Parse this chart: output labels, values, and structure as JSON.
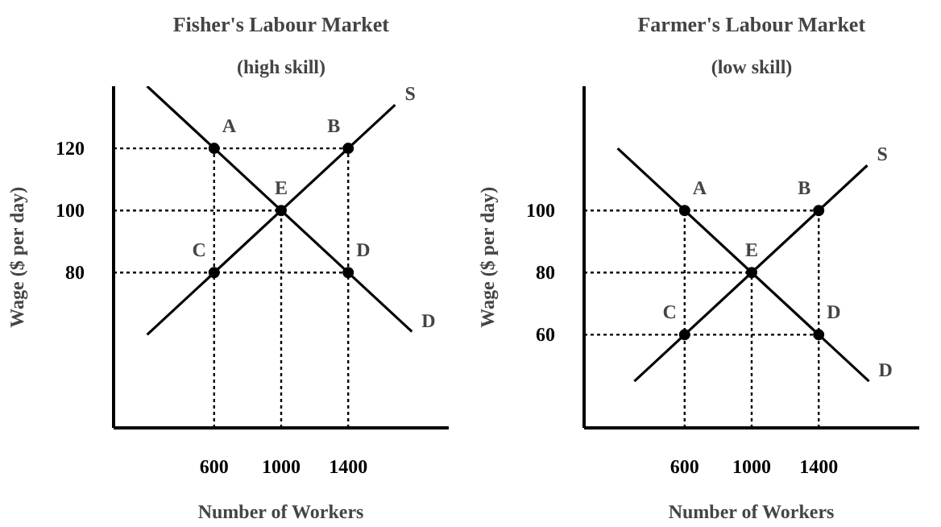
{
  "chart_data": [
    {
      "type": "line",
      "title": "Fisher's Labour Market",
      "subtitle": "(high skill)",
      "xlabel": "Number of Workers",
      "ylabel": "Wage ($ per day)",
      "xlim": [
        0,
        2000
      ],
      "ylim": [
        30,
        140
      ],
      "xticks": [
        600,
        1000,
        1400
      ],
      "yticks": [
        80,
        100,
        120
      ],
      "series": [
        {
          "name": "S",
          "color": "#000000",
          "line_style": "solid",
          "x": [
            200,
            1680
          ],
          "values": [
            60,
            134
          ]
        },
        {
          "name": "D",
          "color": "#000000",
          "line_style": "solid",
          "x": [
            200,
            1780
          ],
          "values": [
            140,
            61
          ]
        },
        {
          "type": "line",
          "color": "#000000",
          "line_style": "dotted",
          "x": [
            0,
            1400
          ],
          "values": [
            120,
            120
          ]
        },
        {
          "type": "line",
          "color": "#000000",
          "line_style": "dotted",
          "x": [
            0,
            1000
          ],
          "values": [
            100,
            100
          ]
        },
        {
          "type": "line",
          "color": "#000000",
          "line_style": "dotted",
          "x": [
            0,
            1400
          ],
          "values": [
            80,
            80
          ]
        },
        {
          "type": "line",
          "color": "#000000",
          "line_style": "dotted",
          "x": [
            600,
            600
          ],
          "values": [
            30,
            120
          ]
        },
        {
          "type": "line",
          "color": "#000000",
          "line_style": "dotted",
          "x": [
            1000,
            1000
          ],
          "values": [
            30,
            100
          ]
        },
        {
          "type": "line",
          "color": "#000000",
          "line_style": "dotted",
          "x": [
            1400,
            1400
          ],
          "values": [
            30,
            120
          ]
        },
        {
          "type": "scatter",
          "marker": "circle",
          "color": "#000000",
          "x": [
            600,
            1400,
            1000,
            600,
            1400
          ],
          "values": [
            120,
            120,
            100,
            80,
            80
          ]
        }
      ],
      "annotations": [
        {
          "text": "A",
          "x": 600,
          "y": 120
        },
        {
          "text": "B",
          "x": 1400,
          "y": 120
        },
        {
          "text": "E",
          "x": 1000,
          "y": 100
        },
        {
          "text": "C",
          "x": 600,
          "y": 80
        },
        {
          "text": "D",
          "x": 1400,
          "y": 80
        }
      ]
    },
    {
      "type": "line",
      "title": "Farmer's Labour Market",
      "subtitle": "(low skill)",
      "xlabel": "Number of Workers",
      "ylabel": "Wage ($ per day)",
      "xlim": [
        0,
        2000
      ],
      "ylim": [
        30,
        140
      ],
      "xticks": [
        600,
        1000,
        1400
      ],
      "yticks": [
        60,
        80,
        100
      ],
      "series": [
        {
          "name": "S",
          "color": "#000000",
          "line_style": "solid",
          "x": [
            300,
            1690
          ],
          "values": [
            45,
            114.5
          ]
        },
        {
          "name": "D",
          "color": "#000000",
          "line_style": "solid",
          "x": [
            200,
            1700
          ],
          "values": [
            120,
            45
          ]
        },
        {
          "type": "line",
          "color": "#000000",
          "line_style": "dotted",
          "x": [
            0,
            1400
          ],
          "values": [
            100,
            100
          ]
        },
        {
          "type": "line",
          "color": "#000000",
          "line_style": "dotted",
          "x": [
            0,
            1000
          ],
          "values": [
            80,
            80
          ]
        },
        {
          "type": "line",
          "color": "#000000",
          "line_style": "dotted",
          "x": [
            0,
            1400
          ],
          "values": [
            60,
            60
          ]
        },
        {
          "type": "line",
          "color": "#000000",
          "line_style": "dotted",
          "x": [
            600,
            600
          ],
          "values": [
            30,
            100
          ]
        },
        {
          "type": "line",
          "color": "#000000",
          "line_style": "dotted",
          "x": [
            1000,
            1000
          ],
          "values": [
            30,
            80
          ]
        },
        {
          "type": "line",
          "color": "#000000",
          "line_style": "dotted",
          "x": [
            1400,
            1400
          ],
          "values": [
            30,
            100
          ]
        },
        {
          "type": "scatter",
          "marker": "circle",
          "color": "#000000",
          "x": [
            600,
            1400,
            1000,
            600,
            1400
          ],
          "values": [
            100,
            100,
            80,
            60,
            60
          ]
        }
      ],
      "annotations": [
        {
          "text": "A",
          "x": 600,
          "y": 100
        },
        {
          "text": "B",
          "x": 1400,
          "y": 100
        },
        {
          "text": "E",
          "x": 1000,
          "y": 80
        },
        {
          "text": "C",
          "x": 600,
          "y": 60
        },
        {
          "text": "D",
          "x": 1400,
          "y": 60
        }
      ]
    }
  ]
}
